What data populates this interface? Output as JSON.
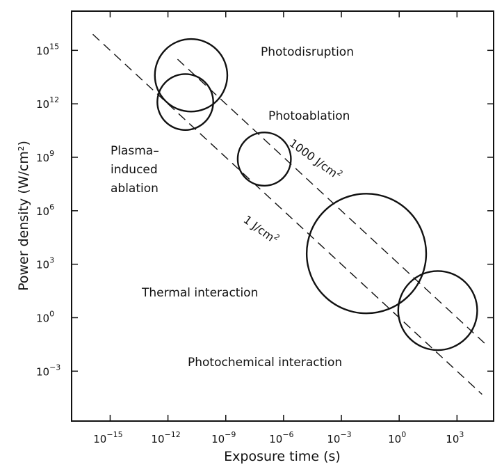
{
  "chart_data": {
    "type": "scatter",
    "title": "",
    "xlabel": "Exposure time (s)",
    "ylabel": "Power density (W/cm²)",
    "x_scale": "log",
    "y_scale": "log",
    "xlim_exp": [
      -17,
      4.9
    ],
    "ylim_exp": [
      -5.8,
      17.2
    ],
    "x_ticks_exp": [
      -15,
      -12,
      -9,
      -6,
      -3,
      0,
      3
    ],
    "y_ticks_exp": [
      -3,
      0,
      3,
      6,
      9,
      12,
      15
    ],
    "tick_base": "10",
    "grid": false,
    "regions": [
      {
        "name": "Photodisruption",
        "center_log_t": -10.8,
        "center_log_I": 13.6,
        "radius_decades": 1.88
      },
      {
        "name": "Plasma-induced ablation",
        "center_log_t": -11.1,
        "center_log_I": 12.1,
        "radius_decades": 1.45
      },
      {
        "name": "Photoablation",
        "center_log_t": -7.0,
        "center_log_I": 8.9,
        "radius_decades": 1.38
      },
      {
        "name": "Thermal interaction",
        "center_log_t": -1.7,
        "center_log_I": 3.6,
        "radius_decades": 3.1
      },
      {
        "name": "Photochemical interaction",
        "center_log_t": 2.0,
        "center_log_I": 0.4,
        "radius_decades": 2.05
      }
    ],
    "lines": [
      {
        "label": "1 J/cm²",
        "fluence_J_per_cm2": 1,
        "from_log_t": -15.9,
        "to_log_t": 4.3
      },
      {
        "label": "1000 J/cm²",
        "fluence_J_per_cm2": 1000,
        "from_log_t": -11.5,
        "to_log_t": 4.5
      }
    ],
    "annotations": {
      "photodisruption": "Photodisruption",
      "photoablation": "Photoablation",
      "plasma": [
        "Plasma–",
        "induced",
        "ablation"
      ],
      "thermal": "Thermal interaction",
      "photochemical": "Photochemical interaction",
      "fluence_high_prefix": "1000 J/cm",
      "fluence_low_prefix": "1 J/cm",
      "superscript_two": "2"
    }
  }
}
